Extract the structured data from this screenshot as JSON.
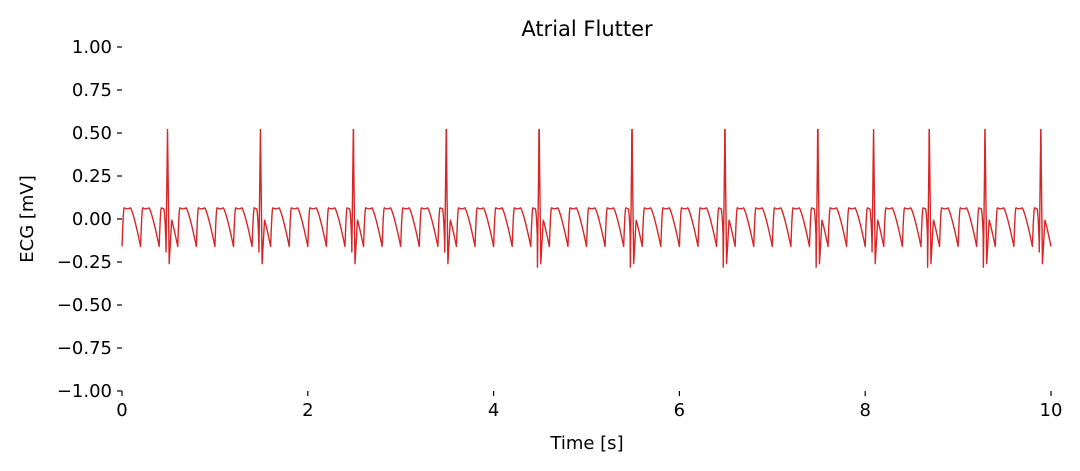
{
  "chart_data": {
    "type": "line",
    "title": "Atrial Flutter",
    "xlabel": "Time [s]",
    "ylabel": "ECG [mV]",
    "xlim": [
      0,
      10
    ],
    "ylim": [
      -1.0,
      1.0
    ],
    "xticks": [
      "0",
      "2",
      "4",
      "6",
      "8",
      "10"
    ],
    "yticks": [
      "1.00",
      "0.75",
      "0.50",
      "0.25",
      "0.00",
      "−0.25",
      "−0.50",
      "−0.75",
      "−1.00"
    ],
    "grid": false,
    "line_color": "#d62728",
    "series": [
      {
        "qrs_peak_times": [
          0.49,
          1.49,
          2.49,
          3.49,
          4.49,
          5.49,
          6.49,
          7.49,
          8.09,
          8.69,
          9.29,
          9.89
        ],
        "r_peak": 0.52,
        "q_trough": -0.22,
        "s_trough": -0.26,
        "flutter_wave_period": 0.2,
        "flutter_wave_max": 0.065,
        "flutter_wave_min": -0.16
      }
    ]
  }
}
